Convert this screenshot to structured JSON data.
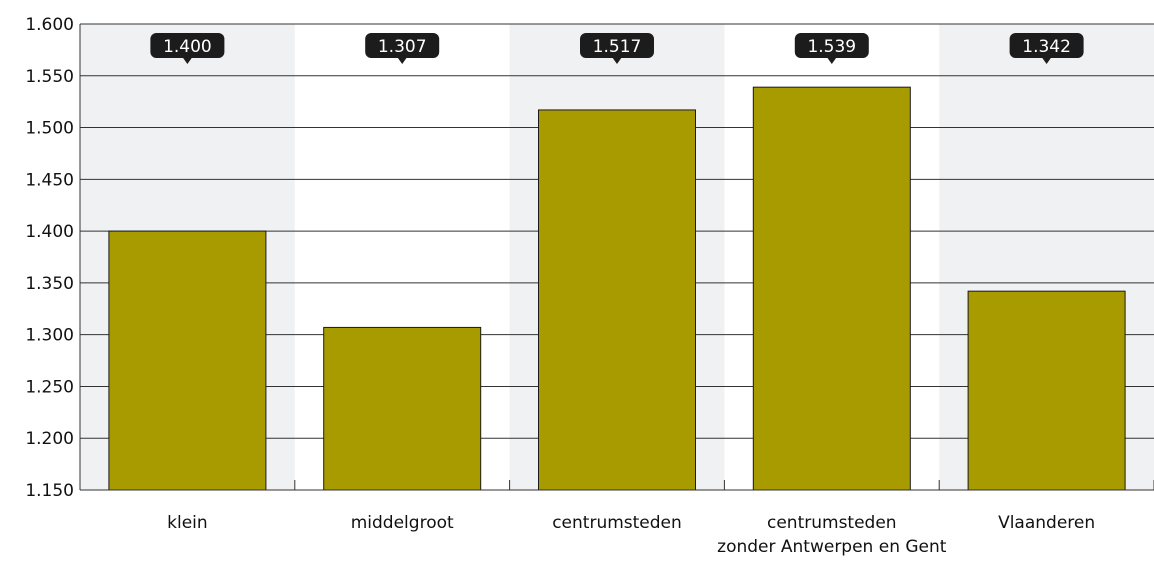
{
  "chart_data": {
    "type": "bar",
    "title": "",
    "xlabel": "",
    "ylabel": "",
    "categories": [
      [
        "klein"
      ],
      [
        "middelgroot"
      ],
      [
        "centrumsteden"
      ],
      [
        "centrumsteden",
        "zonder Antwerpen en Gent"
      ],
      [
        "Vlaanderen"
      ]
    ],
    "values": [
      1400,
      1307,
      1517,
      1539,
      1342
    ],
    "data_labels": [
      "1.400",
      "1.307",
      "1.517",
      "1.539",
      "1.342"
    ],
    "ylim": [
      1150,
      1600
    ],
    "y_ticks": [
      1150,
      1200,
      1250,
      1300,
      1350,
      1400,
      1450,
      1500,
      1550,
      1600
    ],
    "y_tick_labels": [
      "1.150",
      "1.200",
      "1.250",
      "1.300",
      "1.350",
      "1.400",
      "1.450",
      "1.500",
      "1.550",
      "1.600"
    ],
    "grid": true,
    "legend": "none",
    "colors": {
      "bar": "#a89b00",
      "bar_border": "#1a1a1a",
      "band_shade": "#f0f1f3",
      "gridline": "#333333",
      "label_bubble": "#1c1c1c",
      "label_text": "#ffffff"
    }
  }
}
